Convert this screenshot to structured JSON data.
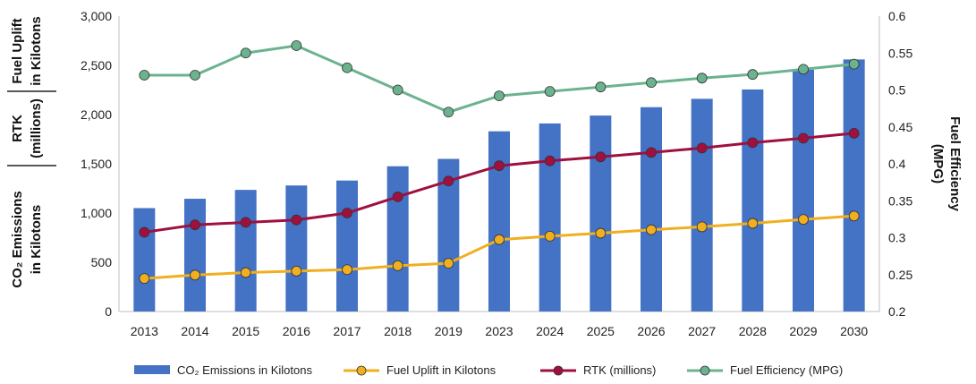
{
  "chart_data": {
    "type": "bar",
    "categories": [
      "2013",
      "2014",
      "2015",
      "2016",
      "2017",
      "2018",
      "2019",
      "2023",
      "2024",
      "2025",
      "2026",
      "2027",
      "2028",
      "2029",
      "2030"
    ],
    "series": [
      {
        "name": "CO₂ Emissions in Kilotons",
        "type": "bar",
        "axis": "left",
        "color": "#4472C4",
        "values": [
          1050,
          1145,
          1235,
          1280,
          1330,
          1475,
          1550,
          1830,
          1910,
          1990,
          2075,
          2160,
          2255,
          2455,
          2560
        ]
      },
      {
        "name": "Fuel Uplift in Kilotons",
        "type": "line",
        "axis": "left",
        "color": "#F0AF20",
        "values": [
          335,
          370,
          395,
          410,
          425,
          465,
          490,
          730,
          765,
          795,
          830,
          860,
          895,
          935,
          970
        ]
      },
      {
        "name": "RTK (millions)",
        "type": "line",
        "axis": "left",
        "color": "#A0103E",
        "values": [
          805,
          880,
          905,
          930,
          1000,
          1165,
          1325,
          1480,
          1530,
          1570,
          1615,
          1660,
          1715,
          1760,
          1810
        ]
      },
      {
        "name": "Fuel Efficiency (MPG)",
        "type": "line",
        "axis": "right",
        "color": "#6BB38E",
        "values": [
          0.52,
          0.52,
          0.55,
          0.56,
          0.53,
          0.5,
          0.47,
          0.492,
          0.498,
          0.504,
          0.51,
          0.516,
          0.521,
          0.528,
          0.535
        ]
      }
    ],
    "left_axis": {
      "min": 0,
      "max": 3000,
      "ticks": [
        "0",
        "500",
        "1,000",
        "1,500",
        "2,000",
        "2,500",
        "3,000"
      ]
    },
    "right_axis": {
      "min": 0.2,
      "max": 0.6,
      "ticks": [
        "0.2",
        "0.25",
        "0.3",
        "0.35",
        "0.4",
        "0.45",
        "0.5",
        "0.55",
        "0.6"
      ],
      "label_line1": "Fuel Efficiency",
      "label_line2": "(MPG)"
    },
    "left_labels": [
      {
        "line1": "Fuel Uplift",
        "line2": "in Kilotons"
      },
      {
        "line1": "RTK",
        "line2": "(millions)"
      },
      {
        "line1": "CO₂ Emissions",
        "line2": "in Kilotons"
      }
    ],
    "grid": false,
    "legend_position": "bottom"
  }
}
